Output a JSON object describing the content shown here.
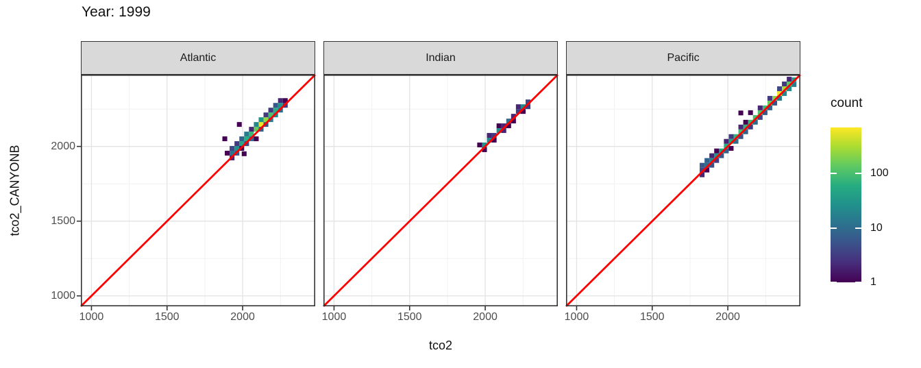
{
  "chart_data": {
    "type": "heatmap",
    "title": "Year: 1999",
    "xlabel": "tco2",
    "ylabel": "tco2_CANYONB",
    "x_domain": [
      930,
      2480
    ],
    "y_domain": [
      930,
      2480
    ],
    "x_ticks": {
      "values": [
        1000,
        1500,
        2000
      ],
      "labels": [
        "1000",
        "1500",
        "2000"
      ]
    },
    "y_ticks": {
      "values": [
        1000,
        1500,
        2000
      ],
      "labels": [
        "1000",
        "1500",
        "2000"
      ]
    },
    "minor_ticks": [
      1250,
      1750,
      2250
    ],
    "binwidth": 32,
    "reference_line": {
      "type": "y=x",
      "color": "#ff0000",
      "width": 2.8
    },
    "legend": {
      "title": "count",
      "scale": "log10",
      "max": 700,
      "ticks": [
        {
          "label": "100",
          "value": 100
        },
        {
          "label": "10",
          "value": 10
        },
        {
          "label": "1",
          "value": 1
        }
      ]
    },
    "colors": {
      "strip_bg": "#d9d9d9",
      "panel_border": "#333333",
      "grid_major": "#e3e3e3",
      "grid_minor": "#f1f1f1",
      "tick_mark": "#333333",
      "axis_text": "#4d4d4d",
      "viridis_stops": [
        [
          0.0,
          "#440154"
        ],
        [
          0.125,
          "#472d7b"
        ],
        [
          0.25,
          "#3b528b"
        ],
        [
          0.375,
          "#2c728e"
        ],
        [
          0.5,
          "#21918c"
        ],
        [
          0.625,
          "#27ad81"
        ],
        [
          0.75,
          "#5ec962"
        ],
        [
          0.875,
          "#aadc32"
        ],
        [
          1.0,
          "#fde725"
        ]
      ]
    },
    "facets": [
      {
        "label": "Atlantic",
        "bins": [
          [
            1930,
            1955,
            12
          ],
          [
            1962,
            1987,
            25
          ],
          [
            1994,
            2019,
            45
          ],
          [
            2026,
            2051,
            60
          ],
          [
            2058,
            2083,
            80
          ],
          [
            2090,
            2115,
            150
          ],
          [
            2122,
            2147,
            600
          ],
          [
            2154,
            2179,
            250
          ],
          [
            2186,
            2211,
            100
          ],
          [
            2218,
            2243,
            60
          ],
          [
            2250,
            2275,
            30
          ],
          [
            1930,
            1923,
            2
          ],
          [
            1898,
            1955,
            1
          ],
          [
            1962,
            1955,
            6
          ],
          [
            1930,
            1987,
            4
          ],
          [
            1962,
            2019,
            3
          ],
          [
            1994,
            1987,
            1
          ],
          [
            1994,
            2051,
            8
          ],
          [
            2026,
            2019,
            4
          ],
          [
            2026,
            2083,
            15
          ],
          [
            2058,
            2051,
            10
          ],
          [
            2058,
            2115,
            2
          ],
          [
            2090,
            2051,
            1
          ],
          [
            2090,
            2147,
            20
          ],
          [
            2122,
            2115,
            8
          ],
          [
            2122,
            2179,
            30
          ],
          [
            2154,
            2147,
            5
          ],
          [
            2154,
            2211,
            3
          ],
          [
            2186,
            2179,
            15
          ],
          [
            2186,
            2243,
            3
          ],
          [
            2218,
            2211,
            20
          ],
          [
            2218,
            2275,
            6
          ],
          [
            2250,
            2243,
            10
          ],
          [
            2250,
            2307,
            2
          ],
          [
            2282,
            2275,
            3
          ],
          [
            2282,
            2307,
            1
          ],
          [
            1978,
            2147,
            1
          ],
          [
            1882,
            2051,
            1
          ],
          [
            2010,
            1951,
            1
          ]
        ]
      },
      {
        "label": "Indian",
        "bins": [
          [
            1995,
            2010,
            30
          ],
          [
            2027,
            2042,
            20
          ],
          [
            2059,
            2074,
            3
          ],
          [
            2091,
            2106,
            25
          ],
          [
            2123,
            2138,
            2
          ],
          [
            2155,
            2170,
            10
          ],
          [
            2187,
            2202,
            2
          ],
          [
            2219,
            2234,
            3
          ],
          [
            2251,
            2266,
            20
          ],
          [
            2283,
            2298,
            4
          ],
          [
            1963,
            2010,
            1
          ],
          [
            1995,
            1978,
            1
          ],
          [
            2027,
            2074,
            2
          ],
          [
            2059,
            2042,
            1
          ],
          [
            2091,
            2138,
            1
          ],
          [
            2123,
            2106,
            2
          ],
          [
            2155,
            2138,
            1
          ],
          [
            2187,
            2170,
            1
          ],
          [
            2219,
            2266,
            2
          ],
          [
            2251,
            2234,
            1
          ],
          [
            2283,
            2266,
            3
          ]
        ]
      },
      {
        "label": "Pacific",
        "bins": [
          [
            1830,
            1842,
            4
          ],
          [
            1862,
            1874,
            10
          ],
          [
            1894,
            1906,
            20
          ],
          [
            1926,
            1938,
            30
          ],
          [
            1958,
            1970,
            45
          ],
          [
            1990,
            2002,
            60
          ],
          [
            2022,
            2034,
            50
          ],
          [
            2054,
            2066,
            70
          ],
          [
            2086,
            2098,
            90
          ],
          [
            2118,
            2130,
            70
          ],
          [
            2150,
            2162,
            80
          ],
          [
            2182,
            2194,
            100
          ],
          [
            2214,
            2226,
            110
          ],
          [
            2246,
            2258,
            90
          ],
          [
            2278,
            2290,
            140
          ],
          [
            2310,
            2322,
            220
          ],
          [
            2342,
            2354,
            600
          ],
          [
            2374,
            2386,
            320
          ],
          [
            2406,
            2418,
            130
          ],
          [
            2438,
            2446,
            40
          ],
          [
            1830,
            1810,
            2
          ],
          [
            1862,
            1842,
            1
          ],
          [
            1830,
            1874,
            6
          ],
          [
            1862,
            1906,
            8
          ],
          [
            1894,
            1874,
            5
          ],
          [
            1894,
            1938,
            2
          ],
          [
            1926,
            1906,
            3
          ],
          [
            1926,
            1970,
            1
          ],
          [
            1958,
            1938,
            6
          ],
          [
            1990,
            1970,
            8
          ],
          [
            1990,
            2034,
            2
          ],
          [
            2022,
            1987,
            1
          ],
          [
            2022,
            2066,
            3
          ],
          [
            2054,
            2034,
            10
          ],
          [
            2086,
            2066,
            5
          ],
          [
            2086,
            2130,
            2
          ],
          [
            2086,
            2224,
            1
          ],
          [
            2118,
            2098,
            8
          ],
          [
            2118,
            2162,
            1
          ],
          [
            2150,
            2130,
            3
          ],
          [
            2150,
            2226,
            1
          ],
          [
            2182,
            2162,
            10
          ],
          [
            2214,
            2194,
            4
          ],
          [
            2214,
            2258,
            2
          ],
          [
            2246,
            2226,
            6
          ],
          [
            2278,
            2258,
            8
          ],
          [
            2278,
            2322,
            3
          ],
          [
            2310,
            2290,
            5
          ],
          [
            2342,
            2322,
            15
          ],
          [
            2342,
            2386,
            4
          ],
          [
            2374,
            2354,
            20
          ],
          [
            2374,
            2418,
            3
          ],
          [
            2406,
            2386,
            25
          ],
          [
            2406,
            2450,
            2
          ],
          [
            2438,
            2414,
            15
          ]
        ]
      }
    ]
  }
}
